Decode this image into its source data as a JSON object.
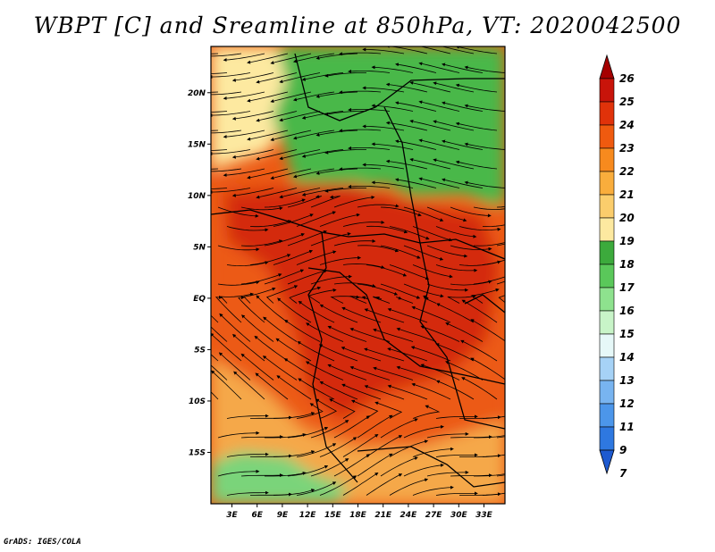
{
  "title": "WBPT [C] and Sreamline at 850hPa, VT: 2020042500",
  "footer": "GrADS: IGES/COLA",
  "lat_ticks": [
    "20N",
    "15N",
    "10N",
    "5N",
    "EQ",
    "5S",
    "10S",
    "15S"
  ],
  "lat_values": [
    20,
    15,
    10,
    5,
    0,
    -5,
    -10,
    -15
  ],
  "lon_ticks": [
    "3E",
    "6E",
    "9E",
    "12E",
    "15E",
    "18E",
    "21E",
    "24E",
    "27E",
    "30E",
    "33E"
  ],
  "lon_values": [
    3,
    6,
    9,
    12,
    15,
    18,
    21,
    24,
    27,
    30,
    33
  ],
  "extent": {
    "lon": [
      0.5,
      35.5
    ],
    "lat": [
      -20.0,
      24.5
    ]
  },
  "colorbar": {
    "labels": [
      "26",
      "25",
      "24",
      "23",
      "22",
      "21",
      "20",
      "19",
      "18",
      "17",
      "16",
      "15",
      "14",
      "13",
      "12",
      "11",
      "9",
      "7"
    ],
    "colors": [
      "#a50000",
      "#c8140a",
      "#e0320a",
      "#ef5a0f",
      "#f78a1e",
      "#f9ad3c",
      "#fbcd6c",
      "#fde9a0",
      "#3caa3c",
      "#5ac85a",
      "#8ee28e",
      "#c8f4c8",
      "#e6f8f8",
      "#a6d2f6",
      "#78b4f0",
      "#4c96ea",
      "#2e78e0",
      "#1e5ad0"
    ],
    "top_arrow_color": "#a50000",
    "bottom_arrow_color": "#1e5ad0"
  },
  "field_regions": {
    "north_green": {
      "value": 17,
      "color": "#48b848"
    },
    "north_yellow": {
      "value": 19,
      "color": "#fde9a0"
    },
    "central_hot": {
      "value": 24,
      "color": "#d42c0c"
    },
    "ring_orange": {
      "value": 23,
      "color": "#ec5a14"
    },
    "south_mix": {
      "value": 21,
      "color": "#f5a848"
    },
    "south_green": {
      "value": 16,
      "color": "#7ad47a"
    }
  }
}
